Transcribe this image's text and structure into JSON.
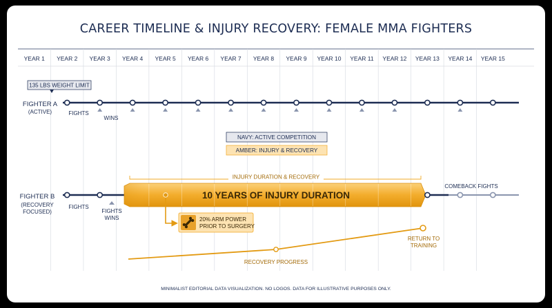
{
  "title": "CAREER TIMELINE & INJURY RECOVERY: FEMALE MMA FIGHTERS",
  "years": [
    "YEAR 1",
    "YEAR 2",
    "YEAR 3",
    "YEAR 4",
    "YEAR 5",
    "YEAR 6",
    "YEAR 7",
    "YEAR 8",
    "YEAR 9",
    "YEAR 10",
    "YEAR 11",
    "YEAR 12",
    "YEAR 13",
    "YEAR 14",
    "YEAR 15"
  ],
  "weight_limit": "135 LBS WEIGHT LIMIT",
  "fighter_a": {
    "name": "FIGHTER A",
    "sub": "(ACTIVE)",
    "fights_label": "FIGHTS",
    "wins_label": "WINS",
    "event_years": [
      2,
      3,
      4,
      5,
      6,
      7,
      8,
      9,
      10,
      11,
      12,
      13,
      14,
      15
    ],
    "win_years": [
      3,
      4,
      5,
      6,
      7,
      8,
      9,
      10,
      11,
      12,
      14
    ]
  },
  "legend": {
    "navy": "NAVY: ACTIVE COMPETITION",
    "amber": "AMBER: INJURY & RECOVERY",
    "navy_color": "#1c2c52",
    "amber_color": "#f1a824"
  },
  "fighter_b": {
    "name": "FIGHTER B",
    "sub1": "(RECOVERY",
    "sub2": "FOCUSED)",
    "fights_label": "FIGHTS",
    "fights_wins_1": "FIGHTS",
    "fights_wins_2": "WINS",
    "injury_bracket": "INJURY DURATION & RECOVERY",
    "injury_band": "10 YEARS OF INJURY DURATION",
    "injury_start_year": 3,
    "injury_end_year": 13,
    "arm_power_1": "20% ARM POWER",
    "arm_power_2": "PRIOR TO SURGERY",
    "comeback": "COMEBACK FIGHTS",
    "comeback_years": [
      13,
      14,
      15
    ],
    "early_fight_years": [
      2,
      3
    ],
    "return_1": "RETURN TO",
    "return_2": "TRAINING",
    "recovery_progress": "RECOVERY PROGRESS"
  },
  "footer": "MINIMALIST EDITORIAL DATA VISUALIZATION. NO LOGOS. DATA FOR ILLUSTRATIVE PURPOSES ONLY.",
  "icons": [
    "bone-injury-icon",
    "up-arrow-icon"
  ]
}
